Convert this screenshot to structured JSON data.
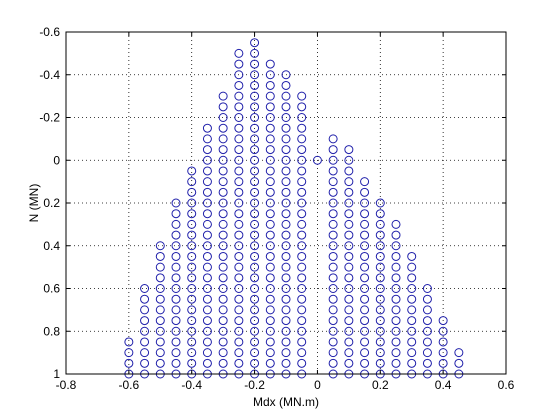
{
  "chart_data": {
    "type": "scatter",
    "title": "",
    "xlabel": "Mdx (MN.m)",
    "ylabel": "N (MN)",
    "xlim": [
      -0.8,
      0.6
    ],
    "ylim": [
      -0.6,
      1.0
    ],
    "y_axis_reversed": true,
    "grid": true,
    "grid_style": "dotted",
    "marker": "open-circle",
    "marker_color": "#1f1faa",
    "xticks": [
      "-0.8",
      "-0.6",
      "-0.4",
      "-0.2",
      "0",
      "0.2",
      "0.4",
      "0.6"
    ],
    "yticks": [
      "-0.6",
      "-0.4",
      "-0.2",
      "0",
      "0.2",
      "0.4",
      "0.6",
      "0.8",
      "1"
    ],
    "xtick_values": [
      -0.8,
      -0.6,
      -0.4,
      -0.2,
      0,
      0.2,
      0.4,
      0.6
    ],
    "ytick_values": [
      -0.6,
      -0.4,
      -0.2,
      0,
      0.2,
      0.4,
      0.6,
      0.8,
      1.0
    ],
    "columns": [
      {
        "x": -0.6,
        "y_from": 0.85,
        "y_to": 1.0
      },
      {
        "x": -0.55,
        "y_from": 0.6,
        "y_to": 1.0
      },
      {
        "x": -0.5,
        "y_from": 0.4,
        "y_to": 1.0
      },
      {
        "x": -0.45,
        "y_from": 0.2,
        "y_to": 1.0
      },
      {
        "x": -0.4,
        "y_from": 0.05,
        "y_to": 1.0
      },
      {
        "x": -0.35,
        "y_from": -0.15,
        "y_to": 1.0
      },
      {
        "x": -0.3,
        "y_from": -0.3,
        "y_to": 1.0
      },
      {
        "x": -0.25,
        "y_from": -0.5,
        "y_to": 1.0
      },
      {
        "x": -0.2,
        "y_from": -0.55,
        "y_to": 1.0
      },
      {
        "x": -0.15,
        "y_from": -0.45,
        "y_to": 1.0
      },
      {
        "x": -0.1,
        "y_from": -0.4,
        "y_to": 1.0
      },
      {
        "x": -0.05,
        "y_from": -0.3,
        "y_to": 1.0
      },
      {
        "x": 0.0,
        "y_from": 0.0,
        "y_to": 0.0
      },
      {
        "x": 0.05,
        "y_from": -0.1,
        "y_to": 1.0
      },
      {
        "x": 0.1,
        "y_from": -0.05,
        "y_to": 1.0
      },
      {
        "x": 0.15,
        "y_from": 0.1,
        "y_to": 1.0
      },
      {
        "x": 0.2,
        "y_from": 0.2,
        "y_to": 1.0
      },
      {
        "x": 0.25,
        "y_from": 0.3,
        "y_to": 1.0
      },
      {
        "x": 0.3,
        "y_from": 0.45,
        "y_to": 1.0
      },
      {
        "x": 0.35,
        "y_from": 0.6,
        "y_to": 1.0
      },
      {
        "x": 0.4,
        "y_from": 0.75,
        "y_to": 1.0
      },
      {
        "x": 0.45,
        "y_from": 0.9,
        "y_to": 1.0
      }
    ],
    "point_step": 0.05
  }
}
